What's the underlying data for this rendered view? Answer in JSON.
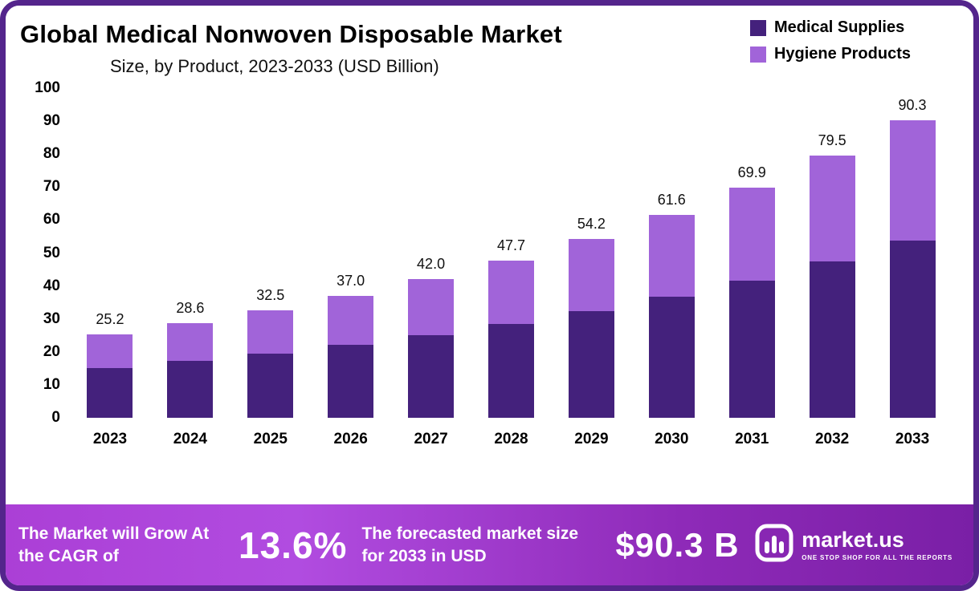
{
  "header": {
    "title": "Global Medical Nonwoven Disposable Market",
    "subtitle": "Size, by Product, 2023-2033 (USD Billion)"
  },
  "legend": [
    {
      "label": "Medical Supplies",
      "color": "#44217c"
    },
    {
      "label": "Hygiene Products",
      "color": "#a164d9"
    }
  ],
  "chart_data": {
    "type": "bar",
    "stacked": true,
    "title": "Global Medical Nonwoven Disposable Market Size, by Product, 2023-2033 (USD Billion)",
    "categories": [
      "2023",
      "2024",
      "2025",
      "2026",
      "2027",
      "2028",
      "2029",
      "2030",
      "2031",
      "2032",
      "2033"
    ],
    "series": [
      {
        "name": "Medical Supplies",
        "color": "#44217c",
        "values": [
          15.0,
          17.2,
          19.5,
          22.1,
          25.1,
          28.5,
          32.3,
          36.8,
          41.6,
          47.4,
          53.8
        ]
      },
      {
        "name": "Hygiene Products",
        "color": "#a164d9",
        "values": [
          10.2,
          11.4,
          13.0,
          14.9,
          16.9,
          19.2,
          21.9,
          24.8,
          28.3,
          32.1,
          36.5
        ]
      }
    ],
    "totals": [
      25.2,
      28.6,
      32.5,
      37.0,
      42.0,
      47.7,
      54.2,
      61.6,
      69.9,
      79.5,
      90.3
    ],
    "total_labels": [
      "25.2",
      "28.6",
      "32.5",
      "37.0",
      "42.0",
      "47.7",
      "54.2",
      "61.6",
      "69.9",
      "79.5",
      "90.3"
    ],
    "xlabel": "",
    "ylabel": "",
    "ylim": [
      0,
      100
    ],
    "yticks": [
      0,
      10,
      20,
      30,
      40,
      50,
      60,
      70,
      80,
      90,
      100
    ],
    "grid": false,
    "legend_position": "top-right"
  },
  "banner": {
    "cagr_text": "The Market will Grow At the CAGR of",
    "cagr_value": "13.6%",
    "forecast_text": "The forecasted market size for 2033 in USD",
    "forecast_value": "$90.3 B",
    "brand_name": "market.us",
    "brand_tagline": "ONE STOP SHOP FOR ALL THE REPORTS"
  },
  "colors": {
    "frame_border": "#54258c",
    "medical_supplies": "#44217c",
    "hygiene_products": "#a164d9",
    "banner_gradient_start": "#ab3fd6",
    "banner_gradient_end": "#7a1fa6",
    "text": "#000000",
    "banner_text": "#ffffff"
  }
}
